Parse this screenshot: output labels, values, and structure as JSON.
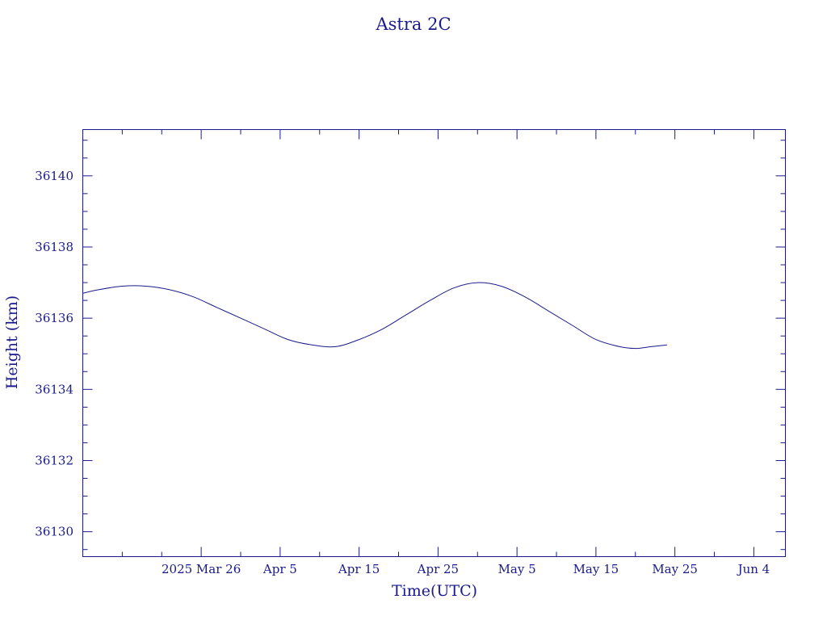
{
  "chart_data": {
    "type": "line",
    "title": "Astra 2C",
    "xlabel": "Time(UTC)",
    "ylabel": "Height (km)",
    "xlim": [
      "2025-03-11",
      "2025-06-08"
    ],
    "ylim": [
      36129.3,
      36141.3
    ],
    "grid": false,
    "legend": "none",
    "x_ticks": [
      {
        "date": "2025-03-26",
        "label": "2025 Mar 26"
      },
      {
        "date": "2025-04-05",
        "label": "Apr  5"
      },
      {
        "date": "2025-04-15",
        "label": "Apr 15"
      },
      {
        "date": "2025-04-25",
        "label": "Apr 25"
      },
      {
        "date": "2025-05-05",
        "label": "May  5"
      },
      {
        "date": "2025-05-15",
        "label": "May 15"
      },
      {
        "date": "2025-05-25",
        "label": "May 25"
      },
      {
        "date": "2025-06-04",
        "label": "Jun  4"
      }
    ],
    "y_ticks": [
      36130,
      36132,
      36134,
      36136,
      36138,
      36140
    ],
    "series": [
      {
        "points": [
          {
            "x": "2025-03-11",
            "y": 36136.7
          },
          {
            "x": "2025-03-13",
            "y": 36136.8
          },
          {
            "x": "2025-03-16",
            "y": 36136.9
          },
          {
            "x": "2025-03-19",
            "y": 36136.9
          },
          {
            "x": "2025-03-22",
            "y": 36136.8
          },
          {
            "x": "2025-03-25",
            "y": 36136.6
          },
          {
            "x": "2025-03-28",
            "y": 36136.3
          },
          {
            "x": "2025-03-31",
            "y": 36136.0
          },
          {
            "x": "2025-04-03",
            "y": 36135.7
          },
          {
            "x": "2025-04-06",
            "y": 36135.4
          },
          {
            "x": "2025-04-09",
            "y": 36135.25
          },
          {
            "x": "2025-04-12",
            "y": 36135.2
          },
          {
            "x": "2025-04-15",
            "y": 36135.4
          },
          {
            "x": "2025-04-18",
            "y": 36135.7
          },
          {
            "x": "2025-04-21",
            "y": 36136.1
          },
          {
            "x": "2025-04-24",
            "y": 36136.5
          },
          {
            "x": "2025-04-27",
            "y": 36136.85
          },
          {
            "x": "2025-04-30",
            "y": 36137.0
          },
          {
            "x": "2025-05-03",
            "y": 36136.9
          },
          {
            "x": "2025-05-06",
            "y": 36136.6
          },
          {
            "x": "2025-05-09",
            "y": 36136.2
          },
          {
            "x": "2025-05-12",
            "y": 36135.8
          },
          {
            "x": "2025-05-15",
            "y": 36135.4
          },
          {
            "x": "2025-05-18",
            "y": 36135.2
          },
          {
            "x": "2025-05-20",
            "y": 36135.15
          },
          {
            "x": "2025-05-22",
            "y": 36135.2
          },
          {
            "x": "2025-05-24",
            "y": 36135.25
          }
        ]
      }
    ]
  }
}
